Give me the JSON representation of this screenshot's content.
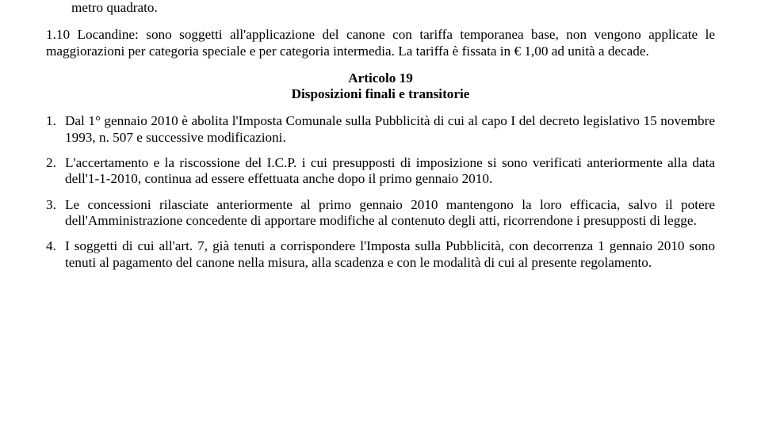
{
  "intro": {
    "line1": "metro quadrato.",
    "line2": "1.10 Locandine: sono soggetti all'applicazione del canone con  tariffa temporanea base, non vengono applicate le maggiorazioni per categoria speciale e per categoria intermedia. La tariffa è fissata in € 1,00 ad unità a decade."
  },
  "article": {
    "heading": "Articolo 19",
    "subtitle": "Disposizioni finali e transitorie"
  },
  "items": [
    {
      "num": "1.",
      "text": "Dal 1° gennaio 2010 è abolita l'Imposta Comunale sulla Pubblicità di cui al capo I del decreto legislativo 15 novembre 1993, n. 507 e successive modificazioni."
    },
    {
      "num": "2.",
      "text": "L'accertamento e la riscossione del I.C.P. i cui presupposti di imposizione si sono verificati anteriormente alla data dell'1-1-2010, continua ad essere effettuata anche dopo il primo gennaio 2010."
    },
    {
      "num": "3.",
      "text": "Le concessioni rilasciate anteriormente al primo gennaio 2010 mantengono la loro efficacia, salvo il potere dell'Amministrazione concedente di apportare modifiche al contenuto degli atti, ricorrendone i presupposti di legge."
    },
    {
      "num": "4.",
      "text": "I soggetti di cui all'art. 7, già tenuti a corrispondere l'Imposta sulla Pubblicità, con decorrenza 1 gennaio 2010 sono tenuti al pagamento del canone nella misura, alla scadenza e con le modalità di cui al presente regolamento."
    }
  ]
}
